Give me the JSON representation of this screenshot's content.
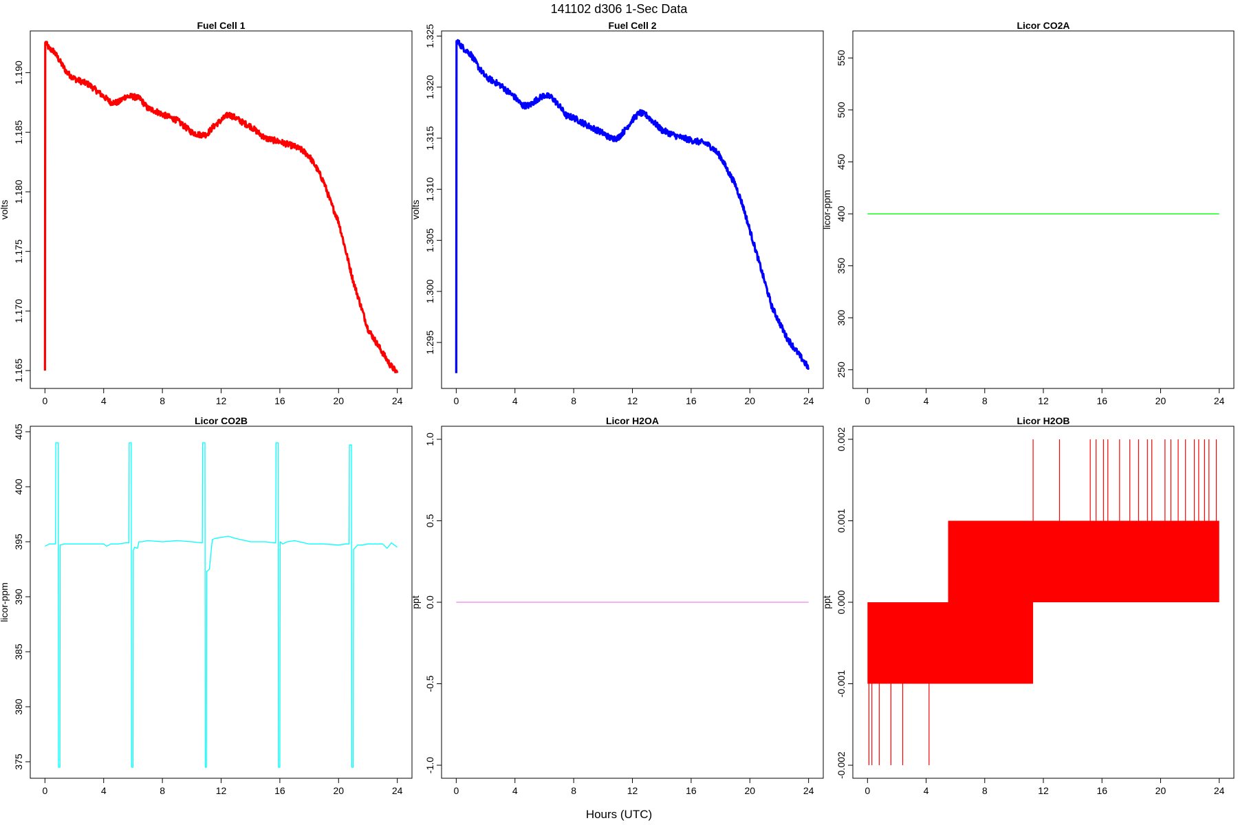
{
  "figure": {
    "title": "141102   d306   1-Sec Data",
    "xlabel": "Hours (UTC)"
  },
  "chart_data": [
    {
      "type": "line",
      "title": "Fuel Cell 1",
      "ylabel": "volts",
      "color": "#ff0000",
      "xlim": [
        -1,
        25
      ],
      "ylim": [
        1.1635,
        1.1935
      ],
      "xticks": [
        0,
        4,
        8,
        12,
        16,
        20,
        24
      ],
      "yticks": [
        1.165,
        1.17,
        1.175,
        1.18,
        1.185,
        1.19
      ],
      "ytick_labels": [
        "1.165",
        "1.170",
        "1.175",
        "1.180",
        "1.185",
        "1.190"
      ],
      "x": [
        0,
        0.02,
        0.05,
        0.3,
        0.6,
        1.0,
        1.5,
        2.0,
        3.0,
        4.0,
        4.5,
        5.0,
        5.5,
        6.0,
        6.5,
        7.0,
        7.5,
        8.0,
        9.0,
        10.0,
        10.5,
        11.0,
        11.5,
        12.0,
        12.5,
        13.0,
        13.5,
        14.0,
        15.0,
        16.0,
        17.0,
        17.5,
        18.0,
        18.5,
        19.0,
        19.5,
        20.0,
        20.5,
        21.0,
        21.5,
        22.0,
        22.5,
        23.0,
        23.5,
        24.0
      ],
      "y": [
        1.165,
        1.1925,
        1.1925,
        1.192,
        1.1918,
        1.191,
        1.19,
        1.1895,
        1.189,
        1.188,
        1.1875,
        1.1875,
        1.188,
        1.188,
        1.1878,
        1.187,
        1.1868,
        1.1865,
        1.186,
        1.185,
        1.1848,
        1.1848,
        1.1855,
        1.186,
        1.1865,
        1.1862,
        1.1858,
        1.1855,
        1.1845,
        1.1842,
        1.1838,
        1.1835,
        1.183,
        1.182,
        1.1808,
        1.179,
        1.1775,
        1.175,
        1.1725,
        1.1705,
        1.1685,
        1.1675,
        1.1665,
        1.1655,
        1.1648
      ],
      "noise": 0.00025
    },
    {
      "type": "line",
      "title": "Fuel Cell 2",
      "ylabel": "volts",
      "color": "#0000ff",
      "xlim": [
        -1,
        25
      ],
      "ylim": [
        1.2905,
        1.3255
      ],
      "xticks": [
        0,
        4,
        8,
        12,
        16,
        20,
        24
      ],
      "yticks": [
        1.295,
        1.3,
        1.305,
        1.31,
        1.315,
        1.32,
        1.325
      ],
      "ytick_labels": [
        "1.295",
        "1.300",
        "1.305",
        "1.310",
        "1.315",
        "1.320",
        "1.325"
      ],
      "x": [
        0,
        0.02,
        0.05,
        0.5,
        1.0,
        1.5,
        2.0,
        3.0,
        4.0,
        4.5,
        5.0,
        5.5,
        6.0,
        6.5,
        7.0,
        7.5,
        8.0,
        9.0,
        10.0,
        10.5,
        11.0,
        11.5,
        12.0,
        12.5,
        13.0,
        13.5,
        14.0,
        15.0,
        16.0,
        17.0,
        17.5,
        18.0,
        18.5,
        19.0,
        19.5,
        20.0,
        20.5,
        21.0,
        21.5,
        22.0,
        22.5,
        23.0,
        23.5,
        24.0
      ],
      "y": [
        1.292,
        1.3245,
        1.3245,
        1.3238,
        1.3232,
        1.322,
        1.321,
        1.3202,
        1.319,
        1.3182,
        1.3182,
        1.3188,
        1.3192,
        1.319,
        1.3182,
        1.3172,
        1.317,
        1.3162,
        1.3155,
        1.315,
        1.315,
        1.3158,
        1.3168,
        1.3175,
        1.3172,
        1.3165,
        1.3158,
        1.3152,
        1.3148,
        1.3145,
        1.314,
        1.3132,
        1.3118,
        1.3105,
        1.3085,
        1.306,
        1.3035,
        1.301,
        1.2985,
        1.297,
        1.2955,
        1.2945,
        1.2935,
        1.2925
      ],
      "noise": 0.0003
    },
    {
      "type": "line",
      "title": "Licor CO2A",
      "ylabel": "licor-ppm",
      "color": "#00ff00",
      "xlim": [
        -1,
        25
      ],
      "ylim": [
        232,
        576
      ],
      "xticks": [
        0,
        4,
        8,
        12,
        16,
        20,
        24
      ],
      "yticks": [
        250,
        300,
        350,
        400,
        450,
        500,
        550
      ],
      "ytick_labels": [
        "250",
        "300",
        "350",
        "400",
        "450",
        "500",
        "550"
      ],
      "x": [
        0,
        24
      ],
      "y": [
        400,
        400
      ]
    },
    {
      "type": "line",
      "title": "Licor CO2B",
      "ylabel": "licor-ppm",
      "color": "#00ffff",
      "xlim": [
        -1,
        25
      ],
      "ylim": [
        373.5,
        405.5
      ],
      "xticks": [
        0,
        4,
        8,
        12,
        16,
        20,
        24
      ],
      "yticks": [
        375,
        380,
        385,
        390,
        395,
        400,
        405
      ],
      "ytick_labels": [
        "375",
        "380",
        "385",
        "390",
        "395",
        "400",
        "405"
      ],
      "x": [
        0,
        0.3,
        0.6,
        0.72,
        0.74,
        0.9,
        0.92,
        1.02,
        1.04,
        1.3,
        2.0,
        3.0,
        4.0,
        4.2,
        4.5,
        5.0,
        5.5,
        5.72,
        5.74,
        5.88,
        5.9,
        6.0,
        6.02,
        6.1,
        6.3,
        6.4,
        6.6,
        7.0,
        8.0,
        9.0,
        10.0,
        10.6,
        10.72,
        10.74,
        10.9,
        10.92,
        11.0,
        11.02,
        11.2,
        11.4,
        11.6,
        12.0,
        12.5,
        13.0,
        14.0,
        15.0,
        15.6,
        15.72,
        15.74,
        15.88,
        15.9,
        16.0,
        16.02,
        16.2,
        16.5,
        17.0,
        18.0,
        19.0,
        20.0,
        20.5,
        20.72,
        20.74,
        20.88,
        20.9,
        21.0,
        21.02,
        21.3,
        21.6,
        22.0,
        23.0,
        23.3,
        23.6,
        24.0
      ],
      "y": [
        394.6,
        394.8,
        394.8,
        394.8,
        404,
        404,
        374.5,
        374.5,
        394.7,
        394.8,
        394.8,
        394.8,
        394.8,
        394.6,
        394.8,
        394.8,
        394.9,
        394.9,
        404,
        404,
        374.5,
        374.5,
        394.2,
        394.5,
        394.4,
        395.0,
        395.0,
        395.1,
        395.0,
        395.1,
        395.0,
        394.9,
        394.9,
        404,
        404,
        374.5,
        374.5,
        392.3,
        392.5,
        395.2,
        395.3,
        395.4,
        395.5,
        395.3,
        395.0,
        395.0,
        394.9,
        394.9,
        404,
        404,
        374.5,
        374.5,
        395.0,
        394.8,
        395.0,
        395.1,
        394.8,
        394.8,
        394.7,
        394.8,
        394.8,
        403.8,
        403.8,
        374.5,
        374.5,
        394.3,
        394.7,
        394.7,
        394.8,
        394.8,
        394.4,
        394.9,
        394.5
      ]
    },
    {
      "type": "line",
      "title": "Licor H2OA",
      "ylabel": "ppt",
      "color": "#ee82ee",
      "xlim": [
        -1,
        25
      ],
      "ylim": [
        -1.08,
        1.08
      ],
      "xticks": [
        0,
        4,
        8,
        12,
        16,
        20,
        24
      ],
      "yticks": [
        -1,
        -0.5,
        0,
        0.5,
        1
      ],
      "ytick_labels": [
        "-1.0",
        "-0.5",
        "0.0",
        "0.5",
        "1.0"
      ],
      "x": [
        0,
        24
      ],
      "y": [
        0,
        0
      ]
    },
    {
      "type": "line",
      "title": "Licor H2OB",
      "ylabel": "ppt",
      "color": "#ff0000",
      "xlim": [
        -1,
        25
      ],
      "ylim": [
        -0.00216,
        0.00216
      ],
      "xticks": [
        0,
        4,
        8,
        12,
        16,
        20,
        24
      ],
      "yticks": [
        -0.002,
        -0.001,
        0,
        0.001,
        0.002
      ],
      "ytick_labels": [
        "-0.002",
        "-0.001",
        "0.000",
        "0.001",
        "0.002"
      ],
      "bands": [
        {
          "x0": 0,
          "x1": 11.3,
          "y0": -0.001,
          "y1": 0
        },
        {
          "x0": 5.5,
          "x1": 24,
          "y0": 0,
          "y1": 0.001
        }
      ],
      "spikes": [
        {
          "x": 0.1,
          "y0": -0.002,
          "y1": 0
        },
        {
          "x": 0.3,
          "y0": -0.002,
          "y1": 0
        },
        {
          "x": 0.8,
          "y0": -0.002,
          "y1": 0
        },
        {
          "x": 1.6,
          "y0": -0.002,
          "y1": 0
        },
        {
          "x": 2.4,
          "y0": -0.002,
          "y1": 0
        },
        {
          "x": 4.2,
          "y0": -0.002,
          "y1": 0
        },
        {
          "x": 11.3,
          "y0": 0,
          "y1": 0.002
        },
        {
          "x": 13.1,
          "y0": 0,
          "y1": 0.002
        },
        {
          "x": 15.2,
          "y0": 0,
          "y1": 0.002
        },
        {
          "x": 15.6,
          "y0": 0,
          "y1": 0.002
        },
        {
          "x": 16.1,
          "y0": 0,
          "y1": 0.002
        },
        {
          "x": 16.4,
          "y0": 0,
          "y1": 0.002
        },
        {
          "x": 17.2,
          "y0": 0,
          "y1": 0.002
        },
        {
          "x": 17.9,
          "y0": 0,
          "y1": 0.002
        },
        {
          "x": 18.5,
          "y0": 0,
          "y1": 0.002
        },
        {
          "x": 19.1,
          "y0": 0,
          "y1": 0.002
        },
        {
          "x": 19.4,
          "y0": 0,
          "y1": 0.002
        },
        {
          "x": 20.3,
          "y0": 0,
          "y1": 0.002
        },
        {
          "x": 20.7,
          "y0": 0,
          "y1": 0.002
        },
        {
          "x": 21.2,
          "y0": 0,
          "y1": 0.002
        },
        {
          "x": 21.7,
          "y0": 0,
          "y1": 0.002
        },
        {
          "x": 22.3,
          "y0": 0,
          "y1": 0.002
        },
        {
          "x": 22.6,
          "y0": 0,
          "y1": 0.002
        },
        {
          "x": 23.0,
          "y0": 0,
          "y1": 0.002
        },
        {
          "x": 23.3,
          "y0": 0,
          "y1": 0.002
        },
        {
          "x": 23.8,
          "y0": 0,
          "y1": 0.002
        }
      ]
    }
  ]
}
